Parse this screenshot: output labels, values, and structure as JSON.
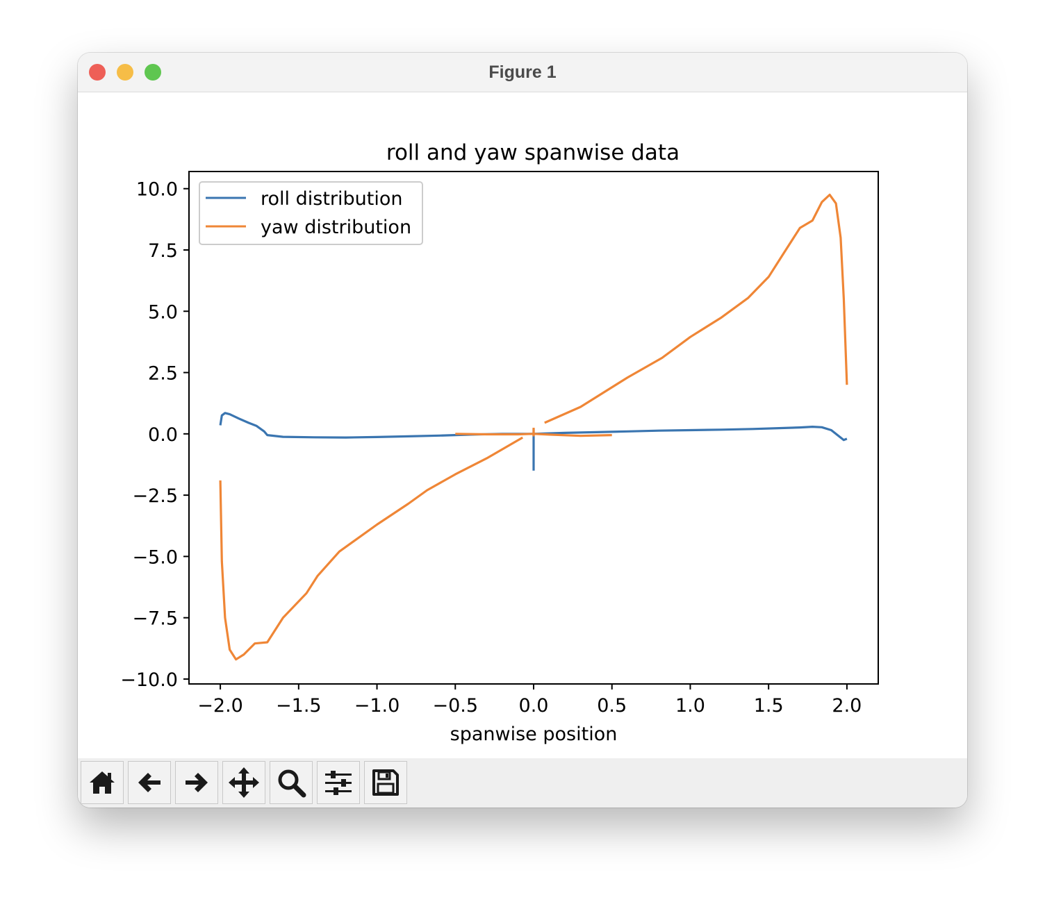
{
  "window": {
    "title": "Figure 1"
  },
  "toolbar": {
    "buttons": [
      {
        "icon": "home-icon"
      },
      {
        "icon": "arrow-left-icon"
      },
      {
        "icon": "arrow-right-icon"
      },
      {
        "icon": "move-icon"
      },
      {
        "icon": "zoom-icon"
      },
      {
        "icon": "sliders-icon"
      },
      {
        "icon": "save-icon"
      }
    ]
  },
  "chart_data": {
    "type": "line",
    "title": "roll and yaw spanwise data",
    "xlabel": "spanwise position",
    "ylabel": "",
    "xlim": [
      -2.2,
      2.2
    ],
    "ylim": [
      -10.2,
      10.7
    ],
    "xticks": [
      -2.0,
      -1.5,
      -1.0,
      -0.5,
      0.0,
      0.5,
      1.0,
      1.5,
      2.0
    ],
    "xtick_labels": [
      "−2.0",
      "−1.5",
      "−1.0",
      "−0.5",
      "0.0",
      "0.5",
      "1.0",
      "1.5",
      "2.0"
    ],
    "yticks": [
      10.0,
      7.5,
      5.0,
      2.5,
      0.0,
      -2.5,
      -5.0,
      -7.5,
      -10.0
    ],
    "ytick_labels": [
      "10.0",
      "7.5",
      "5.0",
      "2.5",
      "0.0",
      "−2.5",
      "−5.0",
      "−7.5",
      "−10.0"
    ],
    "grid": false,
    "legend_position": "upper-left",
    "series": [
      {
        "name": "roll distribution",
        "color": "#3a75b0",
        "segments": [
          [
            [
              -2.0,
              0.35
            ],
            [
              -1.99,
              0.75
            ],
            [
              -1.97,
              0.85
            ],
            [
              -1.94,
              0.8
            ],
            [
              -1.88,
              0.62
            ],
            [
              -1.82,
              0.45
            ],
            [
              -1.77,
              0.33
            ],
            [
              -1.72,
              0.1
            ],
            [
              -1.7,
              -0.05
            ],
            [
              -1.6,
              -0.12
            ],
            [
              -1.4,
              -0.14
            ],
            [
              -1.2,
              -0.15
            ],
            [
              -1.0,
              -0.13
            ],
            [
              -0.8,
              -0.1
            ],
            [
              -0.6,
              -0.07
            ],
            [
              -0.4,
              -0.03
            ],
            [
              -0.2,
              0.0
            ],
            [
              0.0,
              0.0
            ]
          ],
          [
            [
              0.0,
              0.2
            ],
            [
              0.0,
              -1.5
            ]
          ],
          [
            [
              0.0,
              0.0
            ],
            [
              0.2,
              0.04
            ],
            [
              0.4,
              0.07
            ],
            [
              0.6,
              0.1
            ],
            [
              0.8,
              0.13
            ],
            [
              1.0,
              0.15
            ],
            [
              1.2,
              0.17
            ],
            [
              1.4,
              0.2
            ],
            [
              1.6,
              0.24
            ],
            [
              1.7,
              0.26
            ],
            [
              1.78,
              0.29
            ],
            [
              1.84,
              0.27
            ],
            [
              1.9,
              0.15
            ],
            [
              1.94,
              -0.05
            ],
            [
              1.98,
              -0.25
            ],
            [
              2.0,
              -0.2
            ]
          ]
        ]
      },
      {
        "name": "yaw distribution",
        "color": "#ef8636",
        "segments": [
          [
            [
              -2.0,
              -1.9
            ],
            [
              -1.99,
              -5.2
            ],
            [
              -1.97,
              -7.5
            ],
            [
              -1.94,
              -8.8
            ],
            [
              -1.9,
              -9.2
            ],
            [
              -1.85,
              -9.0
            ],
            [
              -1.78,
              -8.55
            ],
            [
              -1.7,
              -8.5
            ],
            [
              -1.6,
              -7.5
            ],
            [
              -1.45,
              -6.5
            ],
            [
              -1.38,
              -5.8
            ],
            [
              -1.24,
              -4.8
            ],
            [
              -1.0,
              -3.7
            ],
            [
              -0.8,
              -2.85
            ],
            [
              -0.68,
              -2.3
            ],
            [
              -0.5,
              -1.65
            ],
            [
              -0.3,
              -1.0
            ],
            [
              -0.07,
              -0.15
            ]
          ],
          [
            [
              0.07,
              0.45
            ],
            [
              0.3,
              1.1
            ],
            [
              0.6,
              2.3
            ],
            [
              0.82,
              3.1
            ],
            [
              1.0,
              3.95
            ],
            [
              1.2,
              4.75
            ],
            [
              1.37,
              5.55
            ],
            [
              1.5,
              6.4
            ],
            [
              1.6,
              7.4
            ],
            [
              1.7,
              8.4
            ],
            [
              1.78,
              8.7
            ],
            [
              1.84,
              9.45
            ],
            [
              1.89,
              9.75
            ],
            [
              1.93,
              9.4
            ],
            [
              1.96,
              8.0
            ],
            [
              1.98,
              5.5
            ],
            [
              2.0,
              2.0
            ]
          ],
          [
            [
              -0.5,
              0.0
            ],
            [
              -0.3,
              -0.02
            ],
            [
              -0.1,
              -0.02
            ],
            [
              0.0,
              0.0
            ],
            [
              0.1,
              -0.03
            ],
            [
              0.3,
              -0.08
            ],
            [
              0.5,
              -0.05
            ]
          ],
          [
            [
              0.0,
              0.25
            ],
            [
              0.0,
              -0.1
            ]
          ]
        ]
      }
    ]
  }
}
